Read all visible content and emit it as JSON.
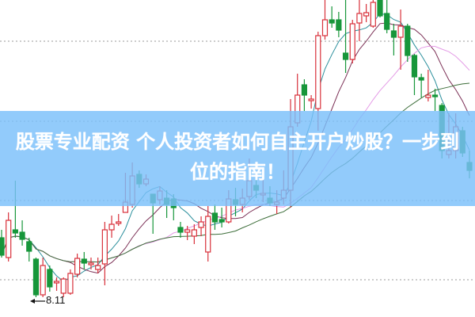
{
  "title": "股票专业配资 个人投资者如何自主开户炒股？一步到位的指南！",
  "chart_data": {
    "type": "candlestick",
    "title": "",
    "xlabel": "",
    "ylabel": "",
    "grid": "horizontal dotted",
    "annotations": [
      {
        "text": "8.11",
        "marks": "lowest low"
      }
    ],
    "moving_averages": [
      5,
      10,
      20,
      30
    ],
    "colors": {
      "up": "#d8303a",
      "down": "#17963a",
      "ma5": "#2b8f9c",
      "ma10": "#7b2f55",
      "ma20": "#e49be6",
      "ma30": "#3d6e3a",
      "grid": "#9a9a9a",
      "banner": "#7ac0fa"
    },
    "candles_ohlc": [
      [
        9.61,
        9.81,
        9.11,
        9.17
      ],
      [
        9.11,
        10.25,
        9.01,
        10.05
      ],
      [
        9.81,
        11.05,
        9.61,
        9.73
      ],
      [
        9.75,
        10.05,
        9.41,
        9.57
      ],
      [
        9.51,
        9.61,
        9.01,
        9.27
      ],
      [
        9.07,
        9.11,
        8.11,
        8.17
      ],
      [
        8.17,
        9.11,
        8.11,
        8.91
      ],
      [
        8.81,
        8.91,
        8.25,
        8.37
      ],
      [
        8.47,
        8.61,
        8.27,
        8.51
      ],
      [
        8.21,
        8.61,
        8.11,
        8.57
      ],
      [
        8.21,
        8.81,
        8.17,
        8.71
      ],
      [
        8.69,
        9.21,
        8.61,
        9.09
      ],
      [
        9.07,
        9.25,
        8.81,
        8.97
      ],
      [
        8.93,
        9.11,
        8.81,
        8.97
      ],
      [
        8.81,
        9.11,
        8.71,
        8.91
      ],
      [
        8.95,
        10.01,
        8.41,
        9.81
      ],
      [
        9.81,
        10.17,
        9.61,
        9.95
      ],
      [
        9.97,
        10.21,
        9.91,
        10.01
      ],
      [
        10.25,
        11.25,
        10.25,
        10.51
      ],
      [
        10.45,
        11.51,
        10.37,
        11.17
      ],
      [
        11.21,
        11.31,
        10.87,
        10.97
      ],
      [
        10.97,
        11.21,
        10.91,
        11.09
      ],
      [
        10.71,
        10.71,
        9.71,
        10.49
      ],
      [
        10.57,
        10.91,
        10.45,
        10.79
      ],
      [
        10.61,
        10.81,
        10.11,
        10.45
      ],
      [
        10.59,
        10.71,
        10.05,
        10.37
      ],
      [
        9.87,
        10.01,
        9.61,
        9.75
      ],
      [
        9.75,
        9.91,
        9.55,
        9.81
      ],
      [
        9.65,
        9.95,
        9.45,
        9.81
      ],
      [
        9.87,
        10.15,
        9.65,
        10.01
      ],
      [
        9.25,
        10.41,
        9.01,
        10.15
      ],
      [
        10.23,
        10.45,
        9.81,
        10.01
      ],
      [
        10.07,
        10.37,
        9.87,
        10.01
      ],
      [
        10.01,
        10.81,
        9.97,
        10.59
      ],
      [
        10.57,
        10.87,
        10.15,
        10.45
      ],
      [
        10.45,
        10.85,
        10.25,
        10.61
      ],
      [
        10.65,
        11.61,
        10.57,
        11.05
      ],
      [
        10.93,
        11.21,
        10.61,
        10.81
      ],
      [
        10.69,
        11.11,
        10.51,
        10.73
      ],
      [
        10.61,
        10.91,
        10.41,
        10.49
      ],
      [
        10.45,
        10.81,
        10.21,
        10.51
      ],
      [
        10.61,
        11.31,
        10.45,
        10.81
      ],
      [
        10.81,
        13.11,
        10.37,
        12.41
      ],
      [
        12.51,
        13.75,
        12.41,
        13.21
      ],
      [
        13.47,
        13.61,
        12.81,
        13.21
      ],
      [
        13.07,
        13.21,
        12.87,
        13.11
      ],
      [
        12.87,
        14.81,
        12.31,
        14.71
      ],
      [
        14.71,
        15.61,
        14.61,
        15.11
      ],
      [
        15.11,
        15.45,
        14.91,
        15.03
      ],
      [
        15.11,
        15.31,
        14.67,
        14.85
      ],
      [
        14.27,
        15.61,
        13.77,
        14.11
      ],
      [
        14.11,
        15.11,
        14.01,
        15.01
      ],
      [
        15.03,
        15.61,
        14.57,
        15.27
      ],
      [
        15.21,
        15.51,
        15.05,
        15.29
      ],
      [
        14.95,
        15.61,
        14.91,
        15.55
      ],
      [
        15.61,
        15.61,
        15.17,
        15.21
      ],
      [
        15.27,
        15.61,
        14.77,
        14.87
      ],
      [
        14.83,
        15.01,
        14.21,
        14.67
      ],
      [
        14.67,
        15.37,
        13.85,
        14.95
      ],
      [
        14.95,
        15.01,
        14.05,
        14.21
      ],
      [
        14.21,
        14.25,
        13.21,
        13.67
      ],
      [
        13.65,
        13.75,
        13.15,
        13.59
      ],
      [
        13.15,
        13.85,
        13.05,
        13.21
      ],
      [
        13.21,
        13.37,
        12.81,
        13.17
      ],
      [
        12.95,
        13.01,
        11.61,
        11.81
      ],
      [
        11.71,
        12.75,
        11.61,
        11.81
      ],
      [
        11.81,
        12.75,
        11.61,
        12.41
      ],
      [
        12.31,
        12.41,
        11.65,
        11.75
      ],
      [
        11.51,
        11.81,
        11.11,
        11.31
      ]
    ],
    "low_label": "8.11"
  }
}
